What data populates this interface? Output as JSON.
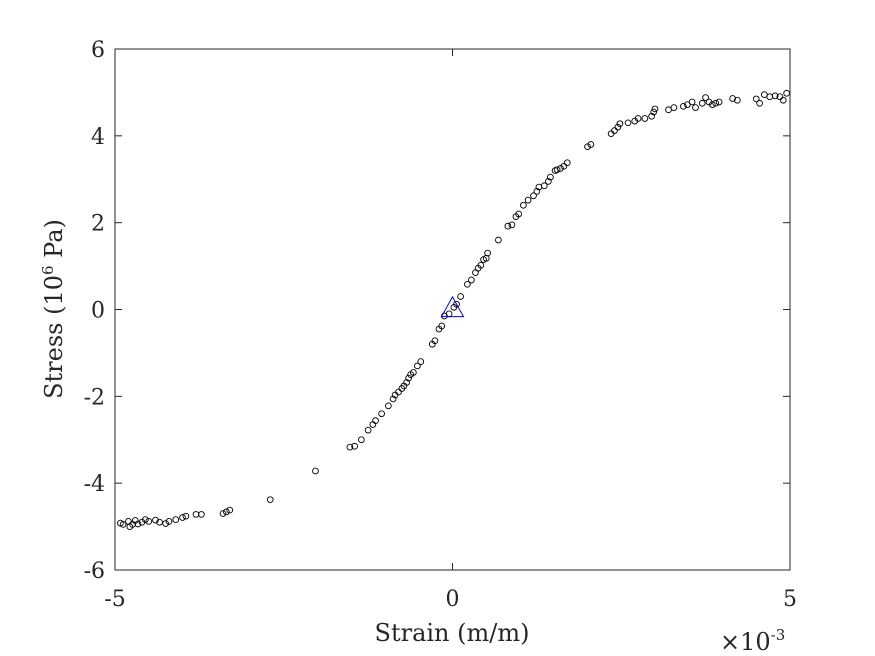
{
  "chart_data": {
    "type": "scatter",
    "xlabel": "Strain (m/m)",
    "ylabel": {
      "prefix": "Stress (10",
      "sup": "6",
      "suffix": " Pa)"
    },
    "x_exponent": {
      "base": "×10",
      "sup": "-3"
    },
    "xlim": [
      -5,
      5
    ],
    "ylim": [
      -6,
      6
    ],
    "x_tick_values": [
      -5,
      0,
      5
    ],
    "x_tick_labels": [
      "-5",
      "0",
      "5"
    ],
    "y_tick_values": [
      -6,
      -4,
      -2,
      0,
      2,
      4,
      6
    ],
    "y_tick_labels": [
      "-6",
      "-4",
      "-2",
      "0",
      "2",
      "4",
      "6"
    ],
    "grid": false,
    "colors": {
      "points": "#000000",
      "marker": "#0000ff",
      "axes": "#262626"
    },
    "series": [
      {
        "marker": "circle",
        "points": [
          [
            -4.92,
            -4.92
          ],
          [
            -4.88,
            -4.95
          ],
          [
            -4.8,
            -4.88
          ],
          [
            -4.78,
            -5.0
          ],
          [
            -4.74,
            -4.95
          ],
          [
            -4.7,
            -4.86
          ],
          [
            -4.66,
            -4.94
          ],
          [
            -4.6,
            -4.9
          ],
          [
            -4.55,
            -4.84
          ],
          [
            -4.5,
            -4.88
          ],
          [
            -4.4,
            -4.85
          ],
          [
            -4.34,
            -4.9
          ],
          [
            -4.25,
            -4.93
          ],
          [
            -4.2,
            -4.88
          ],
          [
            -4.1,
            -4.84
          ],
          [
            -4.0,
            -4.79
          ],
          [
            -3.95,
            -4.76
          ],
          [
            -3.8,
            -4.72
          ],
          [
            -3.72,
            -4.72
          ],
          [
            -3.4,
            -4.7
          ],
          [
            -3.35,
            -4.66
          ],
          [
            -3.3,
            -4.62
          ],
          [
            -2.7,
            -4.38
          ],
          [
            -2.03,
            -3.72
          ],
          [
            -1.52,
            -3.17
          ],
          [
            -1.45,
            -3.15
          ],
          [
            -1.35,
            -3.0
          ],
          [
            -1.25,
            -2.78
          ],
          [
            -1.18,
            -2.65
          ],
          [
            -1.14,
            -2.56
          ],
          [
            -1.05,
            -2.4
          ],
          [
            -0.95,
            -2.22
          ],
          [
            -0.88,
            -2.06
          ],
          [
            -0.85,
            -1.97
          ],
          [
            -0.8,
            -1.9
          ],
          [
            -0.75,
            -1.82
          ],
          [
            -0.72,
            -1.76
          ],
          [
            -0.68,
            -1.68
          ],
          [
            -0.65,
            -1.58
          ],
          [
            -0.62,
            -1.5
          ],
          [
            -0.58,
            -1.45
          ],
          [
            -0.52,
            -1.3
          ],
          [
            -0.47,
            -1.2
          ],
          [
            -0.3,
            -0.8
          ],
          [
            -0.26,
            -0.72
          ],
          [
            -0.2,
            -0.45
          ],
          [
            -0.16,
            -0.38
          ],
          [
            -0.12,
            -0.15
          ],
          [
            -0.05,
            -0.1
          ],
          [
            0.02,
            0.05
          ],
          [
            0.06,
            0.12
          ],
          [
            0.12,
            0.3
          ],
          [
            0.22,
            0.58
          ],
          [
            0.28,
            0.68
          ],
          [
            0.34,
            0.85
          ],
          [
            0.38,
            0.95
          ],
          [
            0.42,
            1.02
          ],
          [
            0.46,
            1.15
          ],
          [
            0.5,
            1.18
          ],
          [
            0.52,
            1.3
          ],
          [
            0.68,
            1.6
          ],
          [
            0.82,
            1.92
          ],
          [
            0.88,
            1.95
          ],
          [
            0.94,
            2.14
          ],
          [
            0.98,
            2.2
          ],
          [
            1.05,
            2.4
          ],
          [
            1.12,
            2.52
          ],
          [
            1.2,
            2.62
          ],
          [
            1.25,
            2.72
          ],
          [
            1.28,
            2.82
          ],
          [
            1.36,
            2.85
          ],
          [
            1.42,
            2.95
          ],
          [
            1.45,
            3.05
          ],
          [
            1.52,
            3.2
          ],
          [
            1.55,
            3.22
          ],
          [
            1.6,
            3.25
          ],
          [
            1.65,
            3.3
          ],
          [
            1.7,
            3.38
          ],
          [
            2.0,
            3.75
          ],
          [
            2.05,
            3.8
          ],
          [
            2.35,
            4.05
          ],
          [
            2.4,
            4.12
          ],
          [
            2.45,
            4.2
          ],
          [
            2.48,
            4.28
          ],
          [
            2.6,
            4.3
          ],
          [
            2.7,
            4.34
          ],
          [
            2.75,
            4.4
          ],
          [
            2.85,
            4.4
          ],
          [
            2.95,
            4.45
          ],
          [
            2.98,
            4.55
          ],
          [
            3.0,
            4.62
          ],
          [
            3.2,
            4.6
          ],
          [
            3.28,
            4.65
          ],
          [
            3.42,
            4.68
          ],
          [
            3.48,
            4.72
          ],
          [
            3.55,
            4.78
          ],
          [
            3.6,
            4.65
          ],
          [
            3.7,
            4.75
          ],
          [
            3.75,
            4.88
          ],
          [
            3.8,
            4.78
          ],
          [
            3.85,
            4.72
          ],
          [
            3.9,
            4.75
          ],
          [
            3.95,
            4.78
          ],
          [
            4.15,
            4.86
          ],
          [
            4.22,
            4.82
          ],
          [
            4.5,
            4.85
          ],
          [
            4.55,
            4.75
          ],
          [
            4.62,
            4.95
          ],
          [
            4.7,
            4.9
          ],
          [
            4.78,
            4.92
          ],
          [
            4.85,
            4.9
          ],
          [
            4.9,
            4.82
          ],
          [
            4.95,
            4.98
          ]
        ]
      },
      {
        "marker": "triangle",
        "points": [
          [
            0.0,
            0.0
          ]
        ]
      }
    ]
  }
}
